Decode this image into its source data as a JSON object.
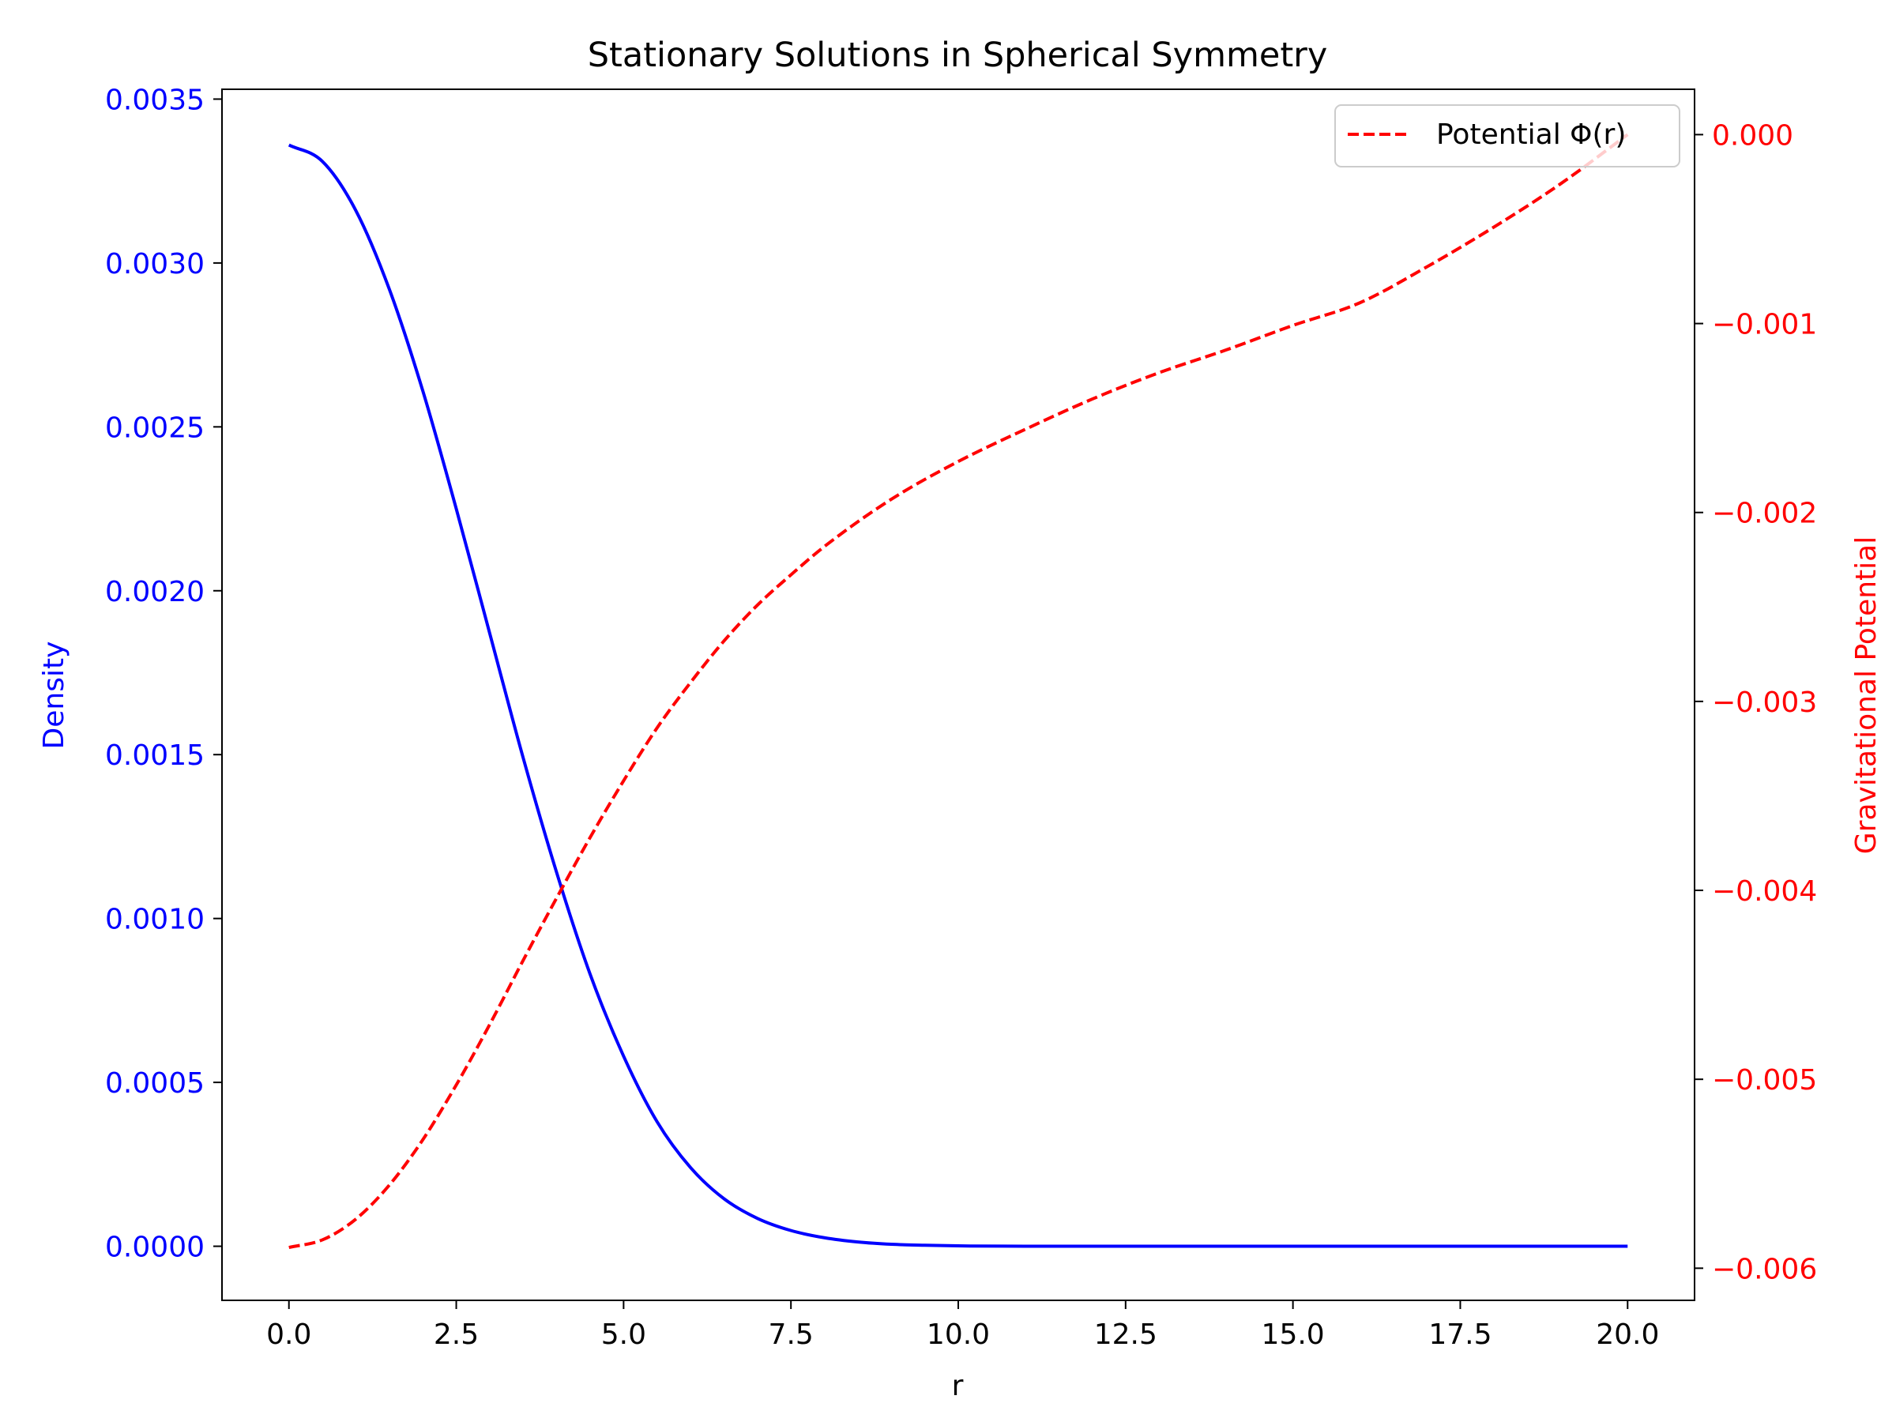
{
  "chart_data": {
    "type": "line",
    "title": "Stationary Solutions in Spherical Symmetry",
    "xlabel": "r",
    "ylabel_left": "Density",
    "ylabel_right": "Gravitational Potential",
    "xlim": [
      -1.0,
      21.0
    ],
    "ylim_left": [
      -0.000165,
      0.00353
    ],
    "ylim_right": [
      -0.00617,
      0.00024
    ],
    "x_ticks": [
      0.0,
      2.5,
      5.0,
      7.5,
      10.0,
      12.5,
      15.0,
      17.5,
      20.0
    ],
    "x_tick_labels": [
      "0.0",
      "2.5",
      "5.0",
      "7.5",
      "10.0",
      "12.5",
      "15.0",
      "17.5",
      "20.0"
    ],
    "left_ticks": [
      0.0,
      0.0005,
      0.001,
      0.0015,
      0.002,
      0.0025,
      0.003,
      0.0035
    ],
    "left_tick_labels": [
      "0.0000",
      "0.0005",
      "0.0010",
      "0.0015",
      "0.0020",
      "0.0025",
      "0.0030",
      "0.0035"
    ],
    "right_ticks": [
      0.0,
      -0.001,
      -0.002,
      -0.003,
      -0.004,
      -0.005,
      -0.006
    ],
    "right_tick_labels": [
      "0.000",
      "−0.001",
      "−0.002",
      "−0.003",
      "−0.004",
      "−0.005",
      "−0.006"
    ],
    "grid": false,
    "legend": {
      "placement": "top-right",
      "entries": [
        {
          "label": "Potential Φ(r)",
          "color": "#ff0000",
          "style": "dashed"
        }
      ]
    },
    "series": [
      {
        "name": "Density",
        "axis": "left",
        "color": "#0000ff",
        "style": "solid",
        "x": [
          0,
          0.5,
          1.0,
          1.5,
          2.0,
          2.5,
          3.0,
          3.5,
          4.0,
          4.5,
          5.0,
          5.5,
          6.0,
          6.5,
          7.0,
          7.5,
          8.0,
          8.5,
          9.0,
          9.5,
          10.0,
          11.0,
          12.0,
          14.0,
          16.0,
          18.0,
          20.0
        ],
        "values": [
          0.00336,
          0.00331,
          0.00316,
          0.00292,
          0.00261,
          0.00225,
          0.00187,
          0.00149,
          0.00114,
          0.00083,
          0.00058,
          0.00038,
          0.00024,
          0.000145,
          8.5e-05,
          4.8e-05,
          2.6e-05,
          1.3e-05,
          6e-06,
          3e-06,
          1.2e-06,
          2e-07,
          0.0,
          0.0,
          0.0,
          0.0,
          0.0
        ]
      },
      {
        "name": "Potential Φ(r)",
        "axis": "right",
        "color": "#ff0000",
        "style": "dashed",
        "x": [
          0,
          0.5,
          1.0,
          1.5,
          2.0,
          2.5,
          3.0,
          3.5,
          4.0,
          4.5,
          5.0,
          5.5,
          6.0,
          6.5,
          7.0,
          7.5,
          8.0,
          9.0,
          10.0,
          11.0,
          12.0,
          13.0,
          14.0,
          15.0,
          16.0,
          17.0,
          18.0,
          19.0,
          20.0
        ],
        "values": [
          -0.00589,
          -0.00585,
          -0.00574,
          -0.00556,
          -0.00532,
          -0.00503,
          -0.00471,
          -0.00437,
          -0.00404,
          -0.00372,
          -0.00342,
          -0.00314,
          -0.0029,
          -0.00268,
          -0.00249,
          -0.00233,
          -0.00218,
          -0.00193,
          -0.00173,
          -0.00156,
          -0.0014,
          -0.00126,
          -0.00114,
          -0.00101,
          -0.00089,
          -0.0007,
          -0.00049,
          -0.00026,
          0.0
        ]
      }
    ]
  }
}
